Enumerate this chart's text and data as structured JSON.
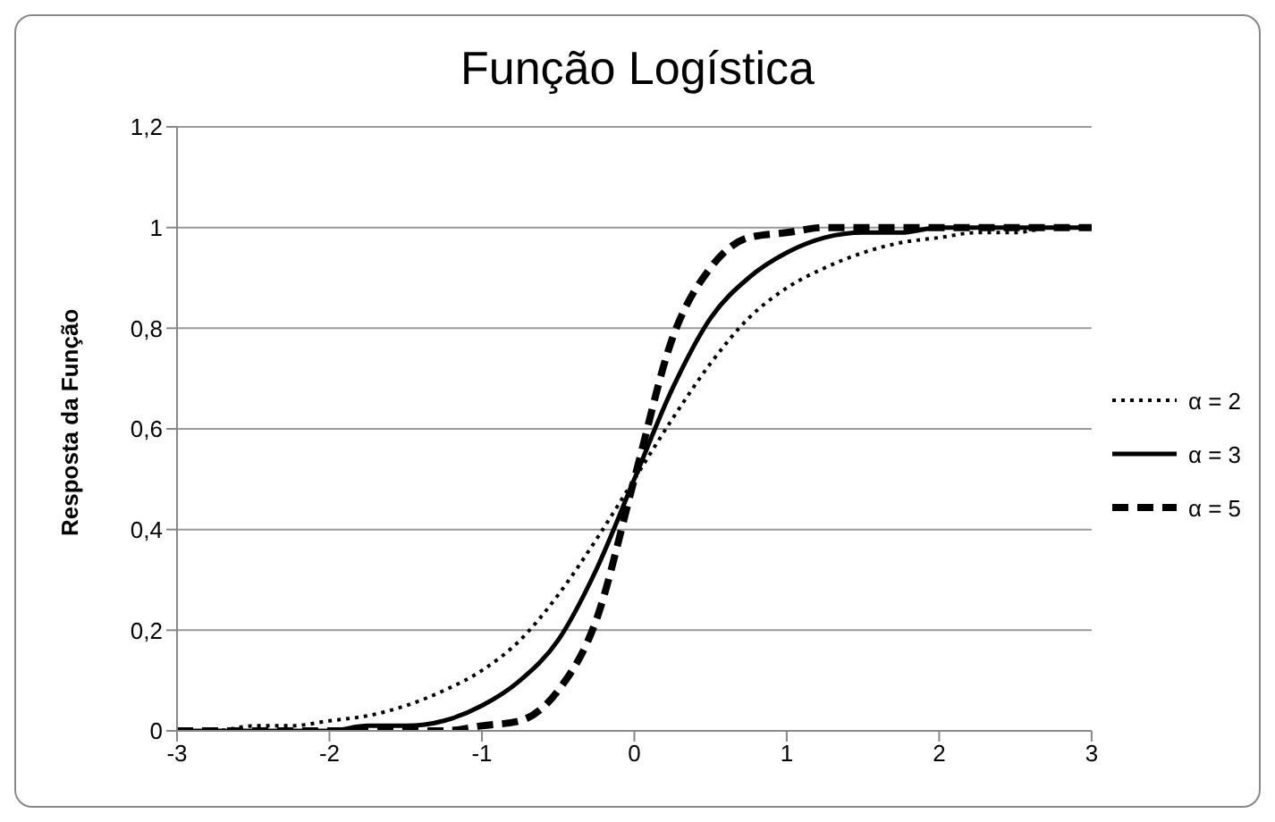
{
  "chart_data": {
    "type": "line",
    "title": "Função Logística",
    "ylabel": "Resposta da Função",
    "x": [
      -3,
      -2.75,
      -2.5,
      -2.25,
      -2,
      -1.75,
      -1.5,
      -1.25,
      -1,
      -0.75,
      -0.5,
      -0.25,
      0,
      0.25,
      0.5,
      0.75,
      1,
      1.25,
      1.5,
      1.75,
      2,
      2.25,
      2.5,
      2.75,
      3
    ],
    "series": [
      {
        "name": "α = 2",
        "color": "#000000",
        "line_style": "dotted",
        "values": [
          0,
          0,
          0.01,
          0.01,
          0.02,
          0.03,
          0.05,
          0.08,
          0.12,
          0.18,
          0.27,
          0.38,
          0.5,
          0.62,
          0.73,
          0.82,
          0.88,
          0.92,
          0.95,
          0.97,
          0.98,
          0.99,
          0.99,
          1,
          1
        ]
      },
      {
        "name": "α = 3",
        "color": "#000000",
        "line_style": "solid",
        "values": [
          0,
          0,
          0,
          0,
          0,
          0.01,
          0.01,
          0.02,
          0.05,
          0.1,
          0.18,
          0.32,
          0.5,
          0.68,
          0.82,
          0.9,
          0.95,
          0.98,
          0.99,
          0.99,
          1,
          1,
          1,
          1,
          1
        ]
      },
      {
        "name": "α = 5",
        "color": "#000000",
        "line_style": "dashed",
        "values": [
          0,
          0,
          0,
          0,
          0,
          0,
          0,
          0,
          0.01,
          0.02,
          0.08,
          0.22,
          0.5,
          0.78,
          0.92,
          0.98,
          0.99,
          1,
          1,
          1,
          1,
          1,
          1,
          1,
          1
        ]
      }
    ],
    "xlim": [
      -3,
      3
    ],
    "xticks": [
      -3,
      -2,
      -1,
      0,
      1,
      2,
      3
    ],
    "ylim": [
      0,
      1.2
    ],
    "yticks": [
      0,
      {
        "value": 0.2,
        "label": "0,2"
      },
      {
        "value": 0.4,
        "label": "0,4"
      },
      {
        "value": 0.6,
        "label": "0,6"
      },
      {
        "value": 0.8,
        "label": "0,8"
      },
      1,
      {
        "value": 1.2,
        "label": "1,2"
      }
    ],
    "grid": "y",
    "legend": "right",
    "marker": "none"
  }
}
